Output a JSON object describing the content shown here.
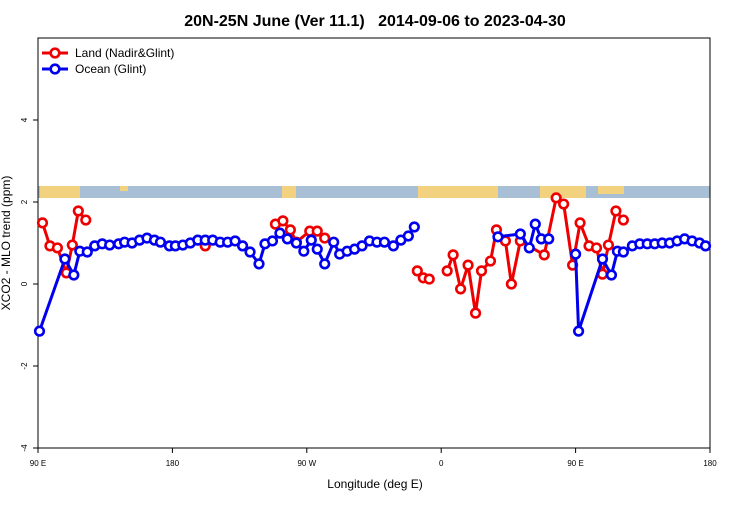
{
  "chart_data": {
    "type": "line",
    "title": "20N-25N June (Ver 11.1)   2014-09-06 to 2023-04-30",
    "x_label": "Longitude (deg E)",
    "y_label": "XCO2 - MLO trend (ppm)",
    "xlim": [
      90,
      540
    ],
    "ylim": [
      -4,
      6
    ],
    "xticks": [
      {
        "value": 90,
        "label": "90 E"
      },
      180,
      {
        "value": 270,
        "label": "90 W"
      },
      {
        "value": 360,
        "label": "0"
      },
      {
        "value": 450,
        "label": "90 E"
      },
      {
        "value": 540,
        "label": "180"
      }
    ],
    "yticks": [
      -4,
      -2,
      0,
      2,
      4
    ],
    "legend": "top-left",
    "series": [
      {
        "name": "Land (Nadir&Glint)",
        "color": "#ee0000",
        "x": [
          93,
          98,
          103,
          109,
          113,
          117,
          122,
          null,
          202,
          null,
          249,
          254,
          259,
          263,
          272,
          277,
          282,
          null,
          344,
          348,
          352,
          null,
          364,
          368,
          373,
          378,
          383,
          387,
          393,
          397,
          403,
          407,
          413,
          429,
          437,
          442,
          448,
          453,
          459,
          464,
          468,
          472,
          477,
          482
        ],
        "values": [
          1.49,
          0.93,
          0.88,
          0.27,
          0.95,
          1.78,
          1.56,
          null,
          0.93,
          null,
          1.46,
          1.54,
          1.32,
          1.02,
          1.29,
          1.29,
          1.12,
          null,
          0.32,
          0.15,
          0.12,
          null,
          0.32,
          0.71,
          -0.12,
          0.46,
          -0.71,
          0.32,
          0.56,
          1.32,
          1.05,
          0.0,
          1.05,
          0.71,
          2.1,
          1.95,
          0.46,
          1.49,
          0.93,
          0.88,
          0.24,
          0.95,
          1.78,
          1.56
        ]
      },
      {
        "name": "Ocean (Glint)",
        "color": "#0000ee",
        "x": [
          91,
          108,
          114,
          118,
          123,
          128,
          133,
          138,
          144,
          148,
          153,
          158,
          163,
          168,
          172,
          178,
          182,
          187,
          192,
          197,
          202,
          207,
          212,
          217,
          222,
          227,
          232,
          238,
          242,
          247,
          252,
          257,
          263,
          268,
          273,
          277,
          282,
          288,
          292,
          297,
          302,
          307,
          312,
          317,
          322,
          328,
          333,
          338,
          342,
          null,
          398,
          413,
          419,
          423,
          427,
          432,
          null,
          450,
          452,
          468,
          474,
          478,
          482,
          488,
          493,
          498,
          503,
          508,
          513,
          518,
          523,
          528,
          533,
          537
        ],
        "values": [
          -1.15,
          0.61,
          0.22,
          0.8,
          0.78,
          0.93,
          0.98,
          0.95,
          0.98,
          1.02,
          1.0,
          1.07,
          1.12,
          1.07,
          1.02,
          0.93,
          0.93,
          0.95,
          1.0,
          1.07,
          1.07,
          1.07,
          1.02,
          1.02,
          1.05,
          0.93,
          0.78,
          0.49,
          0.98,
          1.05,
          1.24,
          1.1,
          1.0,
          0.8,
          1.07,
          0.85,
          0.49,
          1.02,
          0.73,
          0.8,
          0.85,
          0.93,
          1.05,
          1.02,
          1.02,
          0.93,
          1.07,
          1.17,
          1.39,
          null,
          1.15,
          1.22,
          0.88,
          1.46,
          1.1,
          1.1,
          null,
          0.73,
          -1.15,
          0.61,
          0.22,
          0.8,
          0.78,
          0.93,
          0.98,
          0.98,
          0.98,
          1.0,
          1.0,
          1.05,
          1.1,
          1.05,
          1.0,
          0.93
        ]
      }
    ]
  }
}
